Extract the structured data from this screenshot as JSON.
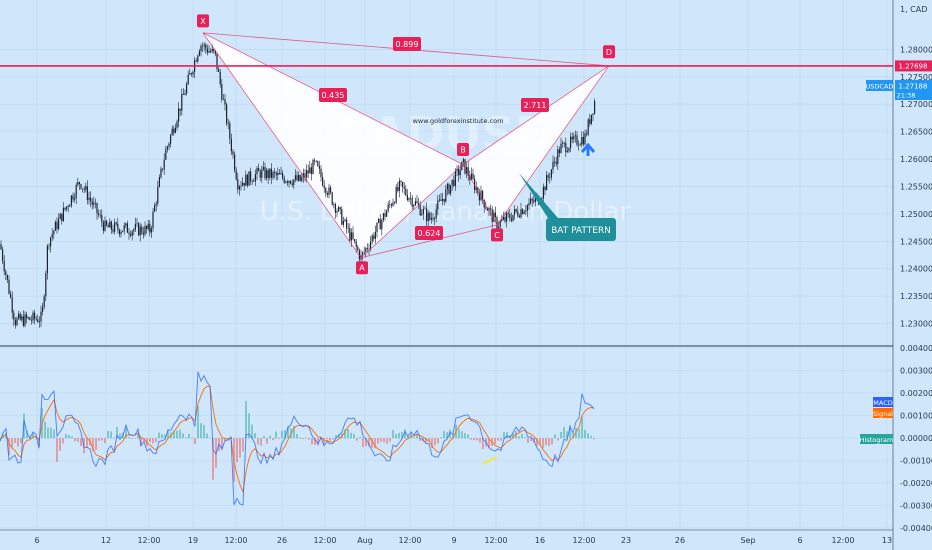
{
  "symbol": {
    "code": "USDCAD",
    "watermark_code": "CADUSD",
    "watermark_name": "U.S. Dollar / Canadian Dollar",
    "currency": "1, CAD"
  },
  "website": "www.goldforexinstitute.com",
  "colors": {
    "background": "#cfe6fb",
    "candle": "#1b2333",
    "pattern": "#e8205a",
    "fill": "#ffffff",
    "resistance": "#e8205a",
    "macd": "#2962ff",
    "signal": "#ff6d00",
    "histogram": "#26a69a",
    "callout": "#1f8f9b",
    "arrow": "#2979ff",
    "note": "#f5e83a"
  },
  "chart_data": [
    {
      "type": "line",
      "series": [
        {
          "name": "USDCAD",
          "display": "candlestick"
        }
      ],
      "y_ticks": [
        "1.28000",
        "1.27500",
        "1.27000",
        "1.26500",
        "1.26000",
        "1.25500",
        "1.25000",
        "1.24500",
        "1.24000",
        "1.23500",
        "1.23000"
      ],
      "ylim": [
        1.227,
        1.289
      ],
      "x_ticks": [
        "6",
        "12",
        "12:00",
        "19",
        "12:00",
        "26",
        "12:00",
        "Aug",
        "12:00",
        "9",
        "12:00",
        "16",
        "12:00",
        "23",
        "26",
        "Sep",
        "6",
        "12:00",
        "13"
      ],
      "resistance": {
        "value": 1.27698,
        "label": "1.27698"
      },
      "last_price": {
        "label": "USDCAD",
        "value": "1.27188",
        "countdown": "21:38"
      },
      "pattern": {
        "name": "BAT PATTERN",
        "points": [
          {
            "label": "X",
            "value": 1.283
          },
          {
            "label": "A",
            "value": 1.242
          },
          {
            "label": "B",
            "value": 1.259
          },
          {
            "label": "C",
            "value": 1.248
          },
          {
            "label": "D",
            "value": 1.277
          }
        ],
        "ratios": [
          {
            "label": "0.899"
          },
          {
            "label": "0.435"
          },
          {
            "label": "2.711"
          },
          {
            "label": "0.624"
          }
        ]
      }
    },
    {
      "type": "line",
      "series": [
        {
          "name": "MACD"
        },
        {
          "name": "Signal"
        },
        {
          "name": "Histogram"
        }
      ],
      "y_ticks": [
        "0.00400",
        "0.00300",
        "0.00200",
        "0.00100",
        "0.00000",
        "-0.00100",
        "-0.00200",
        "-0.00300",
        "-0.00400"
      ],
      "ylim": [
        -0.004,
        0.004
      ]
    }
  ]
}
